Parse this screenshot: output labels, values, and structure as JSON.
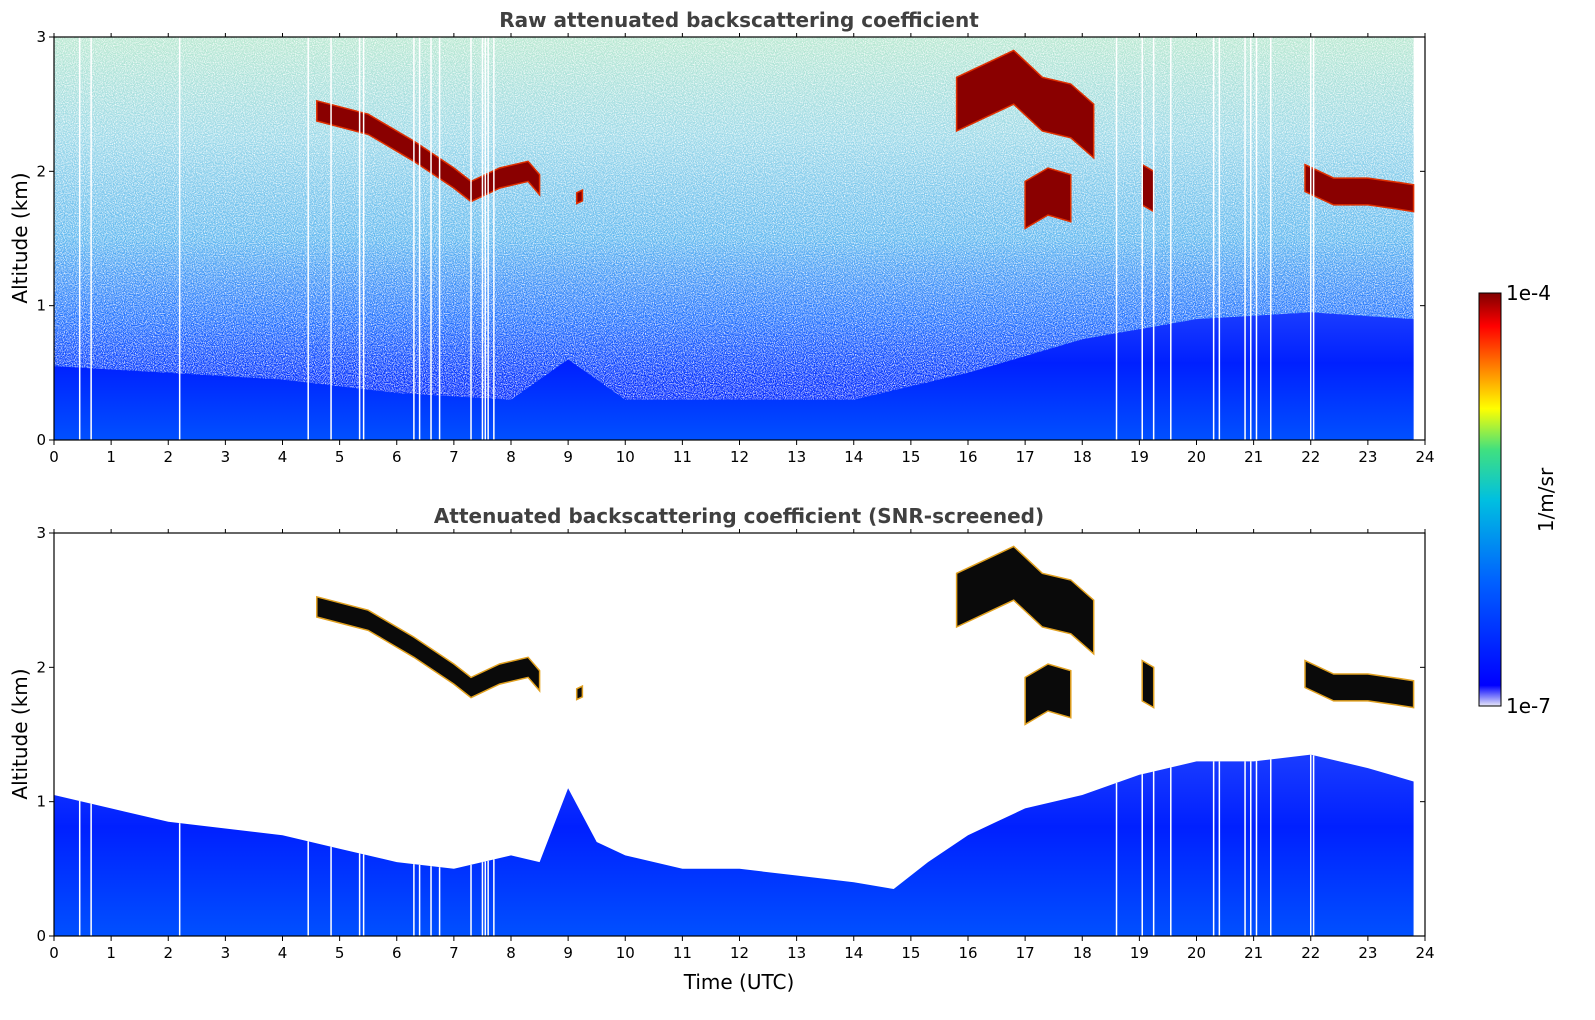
{
  "chart_data": [
    {
      "type": "heatmap",
      "title": "Raw attenuated backscattering coefficient",
      "xlabel": "",
      "ylabel": "Altitude (km)",
      "xlim": [
        0,
        24
      ],
      "ylim": [
        0,
        3
      ],
      "x_ticks": [
        "0",
        "1",
        "2",
        "3",
        "4",
        "5",
        "6",
        "7",
        "8",
        "9",
        "10",
        "11",
        "12",
        "13",
        "14",
        "15",
        "16",
        "17",
        "18",
        "19",
        "20",
        "21",
        "22",
        "23",
        "24"
      ],
      "y_ticks": [
        "0",
        "1",
        "2",
        "3"
      ],
      "grid": false,
      "layers": {
        "boundary_layer_top_km": [
          [
            0,
            0.55
          ],
          [
            2,
            0.5
          ],
          [
            4,
            0.45
          ],
          [
            6,
            0.35
          ],
          [
            8,
            0.3
          ],
          [
            9,
            0.6
          ],
          [
            10,
            0.3
          ],
          [
            12,
            0.3
          ],
          [
            14,
            0.3
          ],
          [
            16,
            0.5
          ],
          [
            18,
            0.75
          ],
          [
            20,
            0.9
          ],
          [
            22,
            0.95
          ],
          [
            23.8,
            0.9
          ]
        ],
        "cloud_layers": [
          {
            "name": "cloud-a",
            "points": [
              [
                4.6,
                2.45
              ],
              [
                5.5,
                2.35
              ],
              [
                6.3,
                2.15
              ],
              [
                7.0,
                1.95
              ],
              [
                7.3,
                1.85
              ],
              [
                7.8,
                1.95
              ],
              [
                8.3,
                2.0
              ],
              [
                8.5,
                1.9
              ]
            ],
            "thickness_km": 0.15
          },
          {
            "name": "cloud-b",
            "points": [
              [
                9.15,
                1.8
              ],
              [
                9.25,
                1.82
              ]
            ],
            "thickness_km": 0.08
          },
          {
            "name": "cloud-c",
            "points": [
              [
                15.8,
                2.5
              ],
              [
                16.3,
                2.6
              ],
              [
                16.8,
                2.7
              ],
              [
                17.3,
                2.5
              ],
              [
                17.8,
                2.45
              ],
              [
                18.2,
                2.3
              ]
            ],
            "thickness_km": 0.4
          },
          {
            "name": "cloud-d",
            "points": [
              [
                17.0,
                1.75
              ],
              [
                17.4,
                1.85
              ],
              [
                17.8,
                1.8
              ]
            ],
            "thickness_km": 0.35
          },
          {
            "name": "cloud-e",
            "points": [
              [
                19.05,
                1.9
              ],
              [
                19.25,
                1.85
              ]
            ],
            "thickness_km": 0.3
          },
          {
            "name": "cloud-f",
            "points": [
              [
                21.9,
                1.95
              ],
              [
                22.4,
                1.85
              ],
              [
                23.0,
                1.85
              ],
              [
                23.5,
                1.82
              ],
              [
                23.8,
                1.8
              ]
            ],
            "thickness_km": 0.2
          }
        ],
        "streak_times_utc": [
          0.45,
          0.65,
          2.2,
          4.45,
          4.85,
          5.35,
          5.42,
          6.3,
          6.4,
          6.6,
          6.75,
          7.3,
          7.5,
          7.55,
          7.6,
          7.7,
          18.6,
          19.05,
          19.25,
          19.55,
          20.3,
          20.4,
          20.85,
          20.95,
          21.05,
          21.3,
          22.0,
          22.05
        ]
      }
    },
    {
      "type": "heatmap",
      "title": "Attenuated backscattering coefficient (SNR-screened)",
      "xlabel": "Time (UTC)",
      "ylabel": "Altitude (km)",
      "xlim": [
        0,
        24
      ],
      "ylim": [
        0,
        3
      ],
      "x_ticks": [
        "0",
        "1",
        "2",
        "3",
        "4",
        "5",
        "6",
        "7",
        "8",
        "9",
        "10",
        "11",
        "12",
        "13",
        "14",
        "15",
        "16",
        "17",
        "18",
        "19",
        "20",
        "21",
        "22",
        "23",
        "24"
      ],
      "y_ticks": [
        "0",
        "1",
        "2",
        "3"
      ],
      "grid": false,
      "layers": {
        "boundary_layer_top_km": [
          [
            0,
            1.05
          ],
          [
            1,
            0.95
          ],
          [
            2,
            0.85
          ],
          [
            3,
            0.8
          ],
          [
            4,
            0.75
          ],
          [
            5,
            0.65
          ],
          [
            6,
            0.55
          ],
          [
            7,
            0.5
          ],
          [
            8,
            0.6
          ],
          [
            8.5,
            0.55
          ],
          [
            9,
            1.1
          ],
          [
            9.5,
            0.7
          ],
          [
            10,
            0.6
          ],
          [
            11,
            0.5
          ],
          [
            12,
            0.5
          ],
          [
            13,
            0.45
          ],
          [
            14,
            0.4
          ],
          [
            14.7,
            0.35
          ],
          [
            15.3,
            0.55
          ],
          [
            16,
            0.75
          ],
          [
            16.5,
            0.85
          ],
          [
            17,
            0.95
          ],
          [
            18,
            1.05
          ],
          [
            19,
            1.2
          ],
          [
            20,
            1.3
          ],
          [
            21,
            1.3
          ],
          [
            22,
            1.35
          ],
          [
            23,
            1.25
          ],
          [
            23.8,
            1.15
          ]
        ],
        "cloud_layers": [
          {
            "name": "cloud-a",
            "points": [
              [
                4.6,
                2.45
              ],
              [
                5.5,
                2.35
              ],
              [
                6.3,
                2.15
              ],
              [
                7.0,
                1.95
              ],
              [
                7.3,
                1.85
              ],
              [
                7.8,
                1.95
              ],
              [
                8.3,
                2.0
              ],
              [
                8.5,
                1.9
              ]
            ],
            "thickness_km": 0.15
          },
          {
            "name": "cloud-b",
            "points": [
              [
                9.15,
                1.8
              ],
              [
                9.25,
                1.82
              ]
            ],
            "thickness_km": 0.08
          },
          {
            "name": "cloud-c",
            "points": [
              [
                15.8,
                2.5
              ],
              [
                16.3,
                2.6
              ],
              [
                16.8,
                2.7
              ],
              [
                17.3,
                2.5
              ],
              [
                17.8,
                2.45
              ],
              [
                18.2,
                2.3
              ]
            ],
            "thickness_km": 0.4
          },
          {
            "name": "cloud-d",
            "points": [
              [
                17.0,
                1.75
              ],
              [
                17.4,
                1.85
              ],
              [
                17.8,
                1.8
              ]
            ],
            "thickness_km": 0.35
          },
          {
            "name": "cloud-e",
            "points": [
              [
                19.05,
                1.9
              ],
              [
                19.25,
                1.85
              ]
            ],
            "thickness_km": 0.3
          },
          {
            "name": "cloud-f",
            "points": [
              [
                21.9,
                1.95
              ],
              [
                22.4,
                1.85
              ],
              [
                23.0,
                1.85
              ],
              [
                23.5,
                1.82
              ],
              [
                23.8,
                1.8
              ]
            ],
            "thickness_km": 0.2
          }
        ],
        "streak_times_utc": [
          0.45,
          0.65,
          2.2,
          4.45,
          4.85,
          5.35,
          5.42,
          6.3,
          6.4,
          6.6,
          6.75,
          7.3,
          7.5,
          7.55,
          7.6,
          7.7,
          18.6,
          19.05,
          19.25,
          19.55,
          20.3,
          20.4,
          20.85,
          20.95,
          21.05,
          21.3,
          22.0,
          22.05
        ]
      }
    }
  ],
  "colorbar": {
    "label": "1/m/sr",
    "max_label": "1e-4",
    "min_label": "1e-7",
    "colormap": [
      "#e8e8f8",
      "#0000ff",
      "#00bfff",
      "#40e0a0",
      "#ffff00",
      "#ff8000",
      "#ff0000",
      "#800000"
    ],
    "scale": "log"
  }
}
